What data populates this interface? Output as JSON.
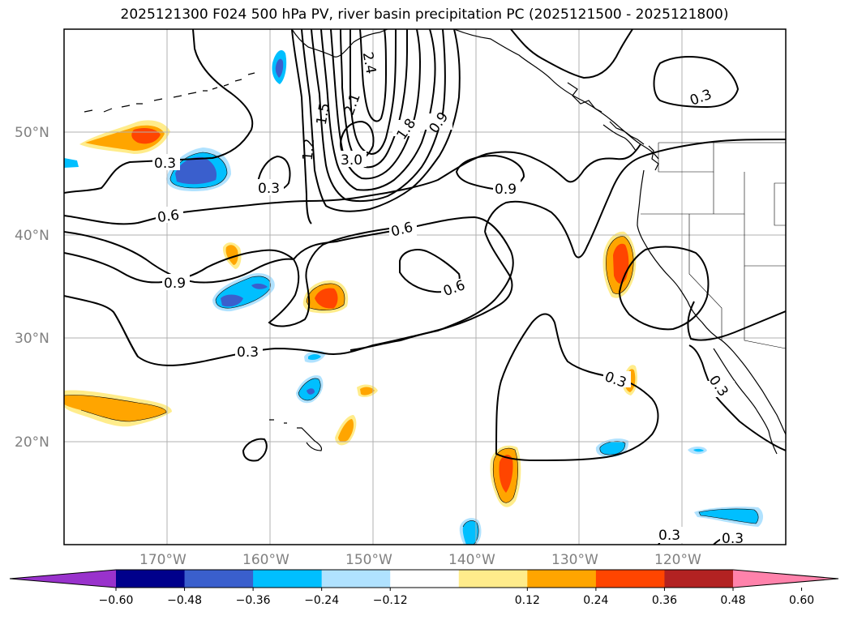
{
  "title": "2025121300 F024 500 hPa PV, river basin precipitation PC (2025121500 - 2025121800)",
  "latitude_labels": [
    "50°N",
    "40°N",
    "30°N",
    "20°N"
  ],
  "longitude_labels": [
    "170°W",
    "160°W",
    "150°W",
    "140°W",
    "130°W",
    "120°W"
  ],
  "contour_labels": [
    "0.3",
    "0.3",
    "0.6",
    "0.9",
    "0.3",
    "0.6",
    "0.9",
    "0.6",
    "1.8",
    "0.9",
    "2.1",
    "2.4",
    "1.5",
    "1.2",
    "3.0",
    "0.3",
    "0.3",
    "0.3",
    "0.3",
    "0.3"
  ],
  "colorbar": {
    "tick_labels": [
      "−0.60",
      "−0.48",
      "−0.36",
      "−0.24",
      "−0.12",
      "0.12",
      "0.24",
      "0.36",
      "0.48",
      "0.60"
    ],
    "colors": [
      "#9932cc",
      "#00008b",
      "#3a5fcd",
      "#00bfff",
      "#b0e2ff",
      "#ffffff",
      "#ffec8b",
      "#ffa500",
      "#ff4500",
      "#b22222",
      "#ff82ab"
    ]
  },
  "colors": {
    "coast": "#000000",
    "grid": "#b0b0b0",
    "contour": "#000000"
  }
}
